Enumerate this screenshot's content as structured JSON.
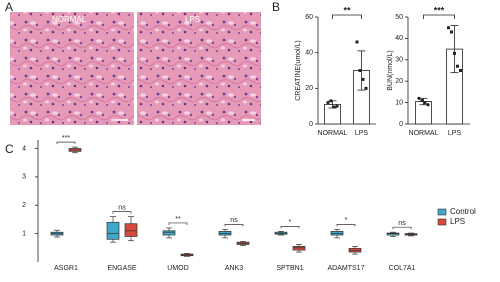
{
  "panel_a": {
    "label": "A",
    "images": [
      "NORMAL",
      "LPS"
    ]
  },
  "chart_data": [
    {
      "type": "bar",
      "panel_label": "B",
      "y_label": "CREATINE(umol/L)",
      "categories": [
        "NORMAL",
        "LPS"
      ],
      "values": [
        11,
        30
      ],
      "errors": [
        2,
        11
      ],
      "points": [
        [
          12,
          13,
          9.5,
          10
        ],
        [
          46,
          30,
          25,
          20
        ]
      ],
      "color": "#ffffff",
      "ylim": [
        0,
        60
      ],
      "yticks": [
        0,
        20,
        40,
        60
      ],
      "significance": "**"
    },
    {
      "type": "bar",
      "y_label": "BUN(nmol/L)",
      "categories": [
        "NORMAL",
        "LPS"
      ],
      "values": [
        10.5,
        35
      ],
      "errors": [
        1.5,
        11
      ],
      "points": [
        [
          12,
          11,
          10,
          9
        ],
        [
          45,
          43,
          33,
          27,
          25
        ]
      ],
      "color": "#ffffff",
      "ylim": [
        0,
        50
      ],
      "yticks": [
        0,
        10,
        20,
        30,
        40,
        50
      ],
      "significance": "***"
    },
    {
      "type": "box",
      "panel_label": "C",
      "categories": [
        "ASGR1",
        "ENGASE",
        "UMOD",
        "ANK3",
        "SPTBN1",
        "ADAMTS17",
        "COL7A1"
      ],
      "significance": [
        "***",
        "ns",
        "**",
        "ns",
        "*",
        "*",
        "ns"
      ],
      "series": [
        {
          "name": "Control",
          "color": "#3fa7c7",
          "values": [
            [
              0.88,
              0.95,
              1.0,
              1.05,
              1.12
            ],
            [
              0.7,
              0.8,
              1.0,
              1.4,
              1.6
            ],
            [
              0.85,
              0.95,
              1.05,
              1.1,
              1.2
            ],
            [
              0.85,
              0.95,
              1.0,
              1.08,
              1.15
            ],
            [
              0.95,
              0.98,
              1.0,
              1.05,
              1.08
            ],
            [
              0.85,
              0.95,
              1.0,
              1.08,
              1.15
            ],
            [
              0.9,
              0.95,
              1.0,
              1.02,
              1.05
            ]
          ]
        },
        {
          "name": "LPS",
          "color": "#d64b3c",
          "values": [
            [
              3.85,
              3.9,
              3.95,
              4.0,
              4.05
            ],
            [
              0.75,
              0.9,
              1.1,
              1.35,
              1.6
            ],
            [
              0.2,
              0.22,
              0.25,
              0.28,
              0.3
            ],
            [
              0.58,
              0.62,
              0.65,
              0.7,
              0.72
            ],
            [
              0.35,
              0.42,
              0.5,
              0.55,
              0.62
            ],
            [
              0.28,
              0.35,
              0.4,
              0.48,
              0.55
            ],
            [
              0.92,
              0.95,
              0.98,
              1.0,
              1.02
            ]
          ]
        }
      ],
      "ylim": [
        0,
        4.3
      ],
      "yticks": [
        1,
        2,
        3,
        4
      ]
    }
  ]
}
